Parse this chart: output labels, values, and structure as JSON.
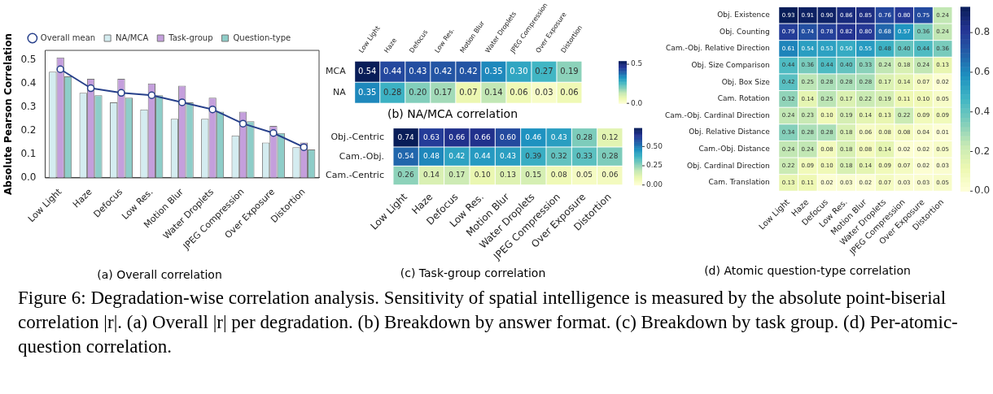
{
  "chart_data": [
    {
      "type": "bar",
      "title": "(a) Overall correlation",
      "ylabel": "Absolute Pearson Correlation",
      "categories": [
        "Low Light",
        "Haze",
        "Defocus",
        "Low Res.",
        "Motion Blur",
        "Water Droplets",
        "JPEG Compression",
        "Over Exposure",
        "Distortion"
      ],
      "series": [
        {
          "name": "Overall mean",
          "type": "line",
          "color": "#27408b",
          "values": [
            0.46,
            0.38,
            0.36,
            0.35,
            0.32,
            0.29,
            0.23,
            0.19,
            0.13
          ]
        },
        {
          "name": "NA/MCA",
          "color": "#d4ecf0",
          "values": [
            0.45,
            0.36,
            0.32,
            0.29,
            0.25,
            0.25,
            0.18,
            0.15,
            0.13
          ]
        },
        {
          "name": "Task-group",
          "color": "#c49fdc",
          "values": [
            0.51,
            0.42,
            0.42,
            0.4,
            0.39,
            0.34,
            0.28,
            0.22,
            0.15
          ]
        },
        {
          "name": "Question-type",
          "color": "#8ecdc8",
          "values": [
            0.43,
            0.35,
            0.34,
            0.35,
            0.32,
            0.28,
            0.24,
            0.19,
            0.12
          ]
        }
      ],
      "ylim": [
        0,
        0.54
      ],
      "yticks": [
        {
          "value": 0,
          "label": "0.0"
        },
        {
          "value": 0.1,
          "label": "0.1"
        },
        {
          "value": 0.2,
          "label": "0.2"
        },
        {
          "value": 0.3,
          "label": "0.3"
        },
        {
          "value": 0.4,
          "label": "0.4"
        },
        {
          "value": 0.5,
          "label": "0.5"
        }
      ],
      "legend": "top",
      "marker": "circle",
      "grid": false,
      "annotations": [
        "Figure 6: Degradation-wise correlation analysis. Sensitivity of spatial intelligence is measured by the absolute point-biserial correlation |r|. (a) Overall |r| per degradation. (b) Breakdown by answer format. (c) Breakdown by task group. (d) Per-atomic-question correlation."
      ]
    },
    {
      "type": "heatmap",
      "title": "(b) NA/MCA correlation",
      "categories": [
        "Low Light",
        "Haze",
        "Defocus",
        "Low Res.",
        "Motion Blur",
        "Water Droplets",
        "JPEG Compression",
        "Over Exposure",
        "Distortion"
      ],
      "y_categories": [
        "MCA",
        "NA"
      ],
      "cells": [
        [
          0.54,
          0.44,
          0.43,
          0.42,
          0.42,
          0.35,
          0.3,
          0.27,
          0.19
        ],
        [
          0.35,
          0.28,
          0.2,
          0.17,
          0.07,
          0.14,
          0.06,
          0.03,
          0.06
        ]
      ],
      "cell_labels": [
        [
          "0.54",
          "0.44",
          "0.43",
          "0.42",
          "0.42",
          "0.35",
          "0.30",
          "0.27",
          "0.19"
        ],
        [
          "0.35",
          "0.28",
          "0.20",
          "0.17",
          "0.07",
          "0.14",
          "0.06",
          "0.03",
          "0.06"
        ]
      ],
      "clim": [
        0,
        0.54
      ],
      "cticks": [
        {
          "value": 0,
          "label": "0.0"
        },
        {
          "value": 0.5,
          "label": "0.5"
        }
      ],
      "data_labels": true
    },
    {
      "type": "heatmap",
      "title": "(c) Task-group correlation",
      "categories": [
        "Low Light",
        "Haze",
        "Defocus",
        "Low Res.",
        "Motion Blur",
        "Water Droplets",
        "JPEG Compression",
        "Over Exposure",
        "Distortion"
      ],
      "y_categories": [
        "Obj.-Centric",
        "Cam.-Obj.",
        "Cam.-Centric"
      ],
      "cells": [
        [
          0.74,
          0.63,
          0.66,
          0.66,
          0.6,
          0.46,
          0.43,
          0.28,
          0.12
        ],
        [
          0.54,
          0.48,
          0.42,
          0.44,
          0.43,
          0.39,
          0.32,
          0.33,
          0.28
        ],
        [
          0.26,
          0.14,
          0.17,
          0.1,
          0.13,
          0.15,
          0.08,
          0.05,
          0.06
        ]
      ],
      "cell_labels": [
        [
          "0.74",
          "0.63",
          "0.66",
          "0.66",
          "0.60",
          "0.46",
          "0.43",
          "0.28",
          "0.12"
        ],
        [
          "0.54",
          "0.48",
          "0.42",
          "0.44",
          "0.43",
          "0.39",
          "0.32",
          "0.33",
          "0.28"
        ],
        [
          "0.26",
          "0.14",
          "0.17",
          "0.10",
          "0.13",
          "0.15",
          "0.08",
          "0.05",
          "0.06"
        ]
      ],
      "clim": [
        0,
        0.74
      ],
      "cticks": [
        {
          "value": 0,
          "label": "0.00"
        },
        {
          "value": 0.25,
          "label": "0.25"
        },
        {
          "value": 0.5,
          "label": "0.50"
        }
      ],
      "data_labels": true
    },
    {
      "type": "heatmap",
      "title": "(d) Atomic question-type correlation",
      "categories": [
        "Low Light",
        "Haze",
        "Defocus",
        "Low Res.",
        "Motion Blur",
        "Water Droplets",
        "JPEG Compression",
        "Over Exposure",
        "Distortion"
      ],
      "y_categories": [
        "Obj. Existence",
        "Obj. Counting",
        "Cam.-Obj. Relative Direction",
        "Obj. Size Comparison",
        "Obj. Box Size",
        "Cam. Rotation",
        "Cam.-Obj. Cardinal Direction",
        "Obj. Relative Distance",
        "Cam.-Obj. Distance",
        "Obj. Cardinal Direction",
        "Cam. Translation"
      ],
      "cells": [
        [
          0.93,
          0.91,
          0.9,
          0.86,
          0.85,
          0.76,
          0.8,
          0.75,
          0.24
        ],
        [
          0.79,
          0.74,
          0.78,
          0.82,
          0.8,
          0.68,
          0.57,
          0.36,
          0.24
        ],
        [
          0.61,
          0.54,
          0.53,
          0.5,
          0.55,
          0.48,
          0.4,
          0.44,
          0.36
        ],
        [
          0.44,
          0.36,
          0.44,
          0.4,
          0.33,
          0.24,
          0.18,
          0.24,
          0.13
        ],
        [
          0.42,
          0.25,
          0.28,
          0.28,
          0.28,
          0.17,
          0.14,
          0.07,
          0.02
        ],
        [
          0.32,
          0.14,
          0.25,
          0.17,
          0.22,
          0.19,
          0.11,
          0.1,
          0.05
        ],
        [
          0.24,
          0.23,
          0.1,
          0.19,
          0.14,
          0.13,
          0.22,
          0.09,
          0.09
        ],
        [
          0.34,
          0.28,
          0.28,
          0.18,
          0.06,
          0.08,
          0.08,
          0.04,
          0.01
        ],
        [
          0.24,
          0.24,
          0.08,
          0.18,
          0.08,
          0.14,
          0.02,
          0.02,
          0.05
        ],
        [
          0.22,
          0.09,
          0.1,
          0.18,
          0.14,
          0.09,
          0.07,
          0.02,
          0.03
        ],
        [
          0.13,
          0.11,
          0.02,
          0.03,
          0.02,
          0.07,
          0.03,
          0.03,
          0.05
        ]
      ],
      "cell_labels": [
        [
          "0.93",
          "0.91",
          "0.90",
          "0.86",
          "0.85",
          "0.76",
          "0.80",
          "0.75",
          "0.24"
        ],
        [
          "0.79",
          "0.74",
          "0.78",
          "0.82",
          "0.80",
          "0.68",
          "0.57",
          "0.36",
          "0.24"
        ],
        [
          "0.61",
          "0.54",
          "0.53",
          "0.50",
          "0.55",
          "0.48",
          "0.40",
          "0.44",
          "0.36"
        ],
        [
          "0.44",
          "0.36",
          "0.44",
          "0.40",
          "0.33",
          "0.24",
          "0.18",
          "0.24",
          "0.13"
        ],
        [
          "0.42",
          "0.25",
          "0.28",
          "0.28",
          "0.28",
          "0.17",
          "0.14",
          "0.07",
          "0.02"
        ],
        [
          "0.32",
          "0.14",
          "0.25",
          "0.17",
          "0.22",
          "0.19",
          "0.11",
          "0.10",
          "0.05"
        ],
        [
          "0.24",
          "0.23",
          "0.10",
          "0.19",
          "0.14",
          "0.13",
          "0.22",
          "0.09",
          "0.09"
        ],
        [
          "0.34",
          "0.28",
          "0.28",
          "0.18",
          "0.06",
          "0.08",
          "0.08",
          "0.04",
          "0.01"
        ],
        [
          "0.24",
          "0.24",
          "0.08",
          "0.18",
          "0.08",
          "0.14",
          "0.02",
          "0.02",
          "0.05"
        ],
        [
          "0.22",
          "0.09",
          "0.10",
          "0.18",
          "0.14",
          "0.09",
          "0.07",
          "0.02",
          "0.03"
        ],
        [
          "0.13",
          "0.11",
          "0.02",
          "0.03",
          "0.02",
          "0.07",
          "0.03",
          "0.03",
          "0.05"
        ]
      ],
      "clim": [
        0,
        0.93
      ],
      "cticks": [
        {
          "value": 0,
          "label": "0.0"
        },
        {
          "value": 0.2,
          "label": "0.2"
        },
        {
          "value": 0.4,
          "label": "0.4"
        },
        {
          "value": 0.6,
          "label": "0.6"
        },
        {
          "value": 0.8,
          "label": "0.8"
        }
      ],
      "data_labels": true
    }
  ]
}
